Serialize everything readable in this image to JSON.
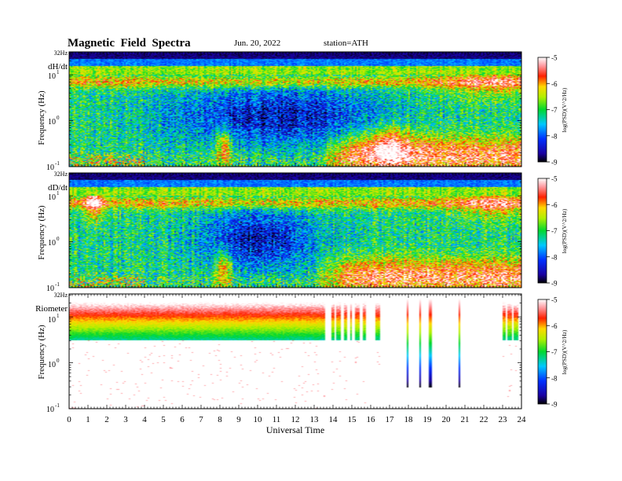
{
  "header": {
    "title": "Magnetic  Field  Spectra",
    "date": "Jun. 20, 2022",
    "station": "station=ATH"
  },
  "chart_data": [
    {
      "type": "heatmap",
      "panel_label": "dH/dt",
      "top_label": "32Hz",
      "ylabel": "Frequency (Hz)",
      "ytick_labels": [
        "10^1",
        "10^0",
        "10^-1"
      ],
      "colorbar_label": "log(PSD)(V^2/Hz)",
      "colorbar_ticks": [
        "-5",
        "-6",
        "-7",
        "-8",
        "-9"
      ],
      "vmin": -9,
      "vmax": -5,
      "xlim": [
        0,
        24
      ],
      "ylim_log10": [
        -1,
        1.5
      ],
      "features": "broadband green noise, red line near 7 Hz, blue quiet band 0.3-3 Hz 8-16 UT, red low-frequency enhancement 13-24 UT"
    },
    {
      "type": "heatmap",
      "panel_label": "dD/dt",
      "top_label": "32Hz",
      "ylabel": "Frequency (Hz)",
      "ytick_labels": [
        "10^1",
        "10^0",
        "10^-1"
      ],
      "colorbar_label": "log(PSD)(V^2/Hz)",
      "colorbar_ticks": [
        "-5",
        "-6",
        "-7",
        "-8",
        "-9"
      ],
      "vmin": -9,
      "vmax": -5,
      "xlim": [
        0,
        24
      ],
      "ylim_log10": [
        -1,
        1.5
      ],
      "features": "green noise, red burst near 1.3 UT, blue patch 8-12 UT, red low-frequency activity 13-24 UT"
    },
    {
      "type": "heatmap",
      "panel_label": "Riometer",
      "top_label": "32Hz",
      "ylabel": "Frequency (Hz)",
      "ytick_labels": [
        "10^1",
        "10^0",
        "10^-1"
      ],
      "colorbar_label": "log(PSD)(V^2/Hz)",
      "colorbar_ticks": [
        "-5",
        "-6",
        "-7",
        "-8",
        "-9"
      ],
      "vmin": -9,
      "vmax": -5,
      "xlim": [
        0,
        24
      ],
      "ylim_log10": [
        -1,
        1.5
      ],
      "features": "strong blue-green-yellow-red band 3-32 Hz until ~13.5 UT, data gaps afterwards with isolated spikes near 18, 18.7, 19.2, 20.7 UT"
    }
  ],
  "xaxis": {
    "label": "Universal Time",
    "ticks": [
      "0",
      "1",
      "2",
      "3",
      "4",
      "5",
      "6",
      "7",
      "8",
      "9",
      "10",
      "11",
      "12",
      "13",
      "14",
      "15",
      "16",
      "17",
      "18",
      "19",
      "20",
      "21",
      "22",
      "23",
      "24"
    ]
  }
}
